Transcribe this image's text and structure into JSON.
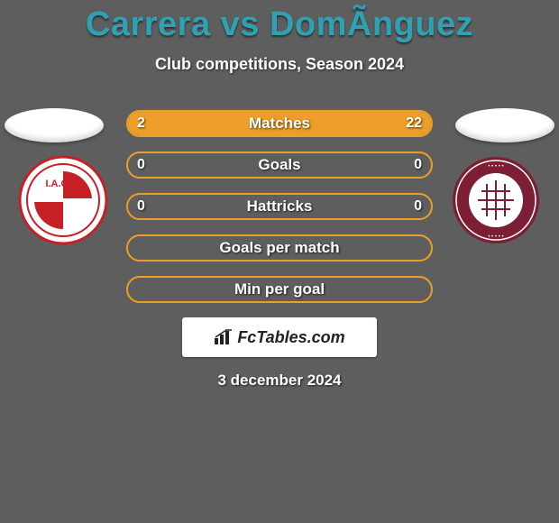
{
  "title": "Carrera vs DomÃnguez",
  "title_color": "#2ea1b3",
  "subtitle": "Club competitions, Season 2024",
  "background_color": "#5e5e5e",
  "accent_color": "#ec9e29",
  "bar_border_color": "#ec9e29",
  "empty_fill_color": "transparent",
  "rows": [
    {
      "label": "Matches",
      "left": "2",
      "right": "22",
      "left_pct": 8,
      "right_pct": 92
    },
    {
      "label": "Goals",
      "left": "0",
      "right": "0",
      "left_pct": 0,
      "right_pct": 0
    },
    {
      "label": "Hattricks",
      "left": "0",
      "right": "0",
      "left_pct": 0,
      "right_pct": 0
    },
    {
      "label": "Goals per match",
      "left": "",
      "right": "",
      "left_pct": 0,
      "right_pct": 0
    },
    {
      "label": "Min per goal",
      "left": "",
      "right": "",
      "left_pct": 0,
      "right_pct": 0
    }
  ],
  "branding": "FcTables.com",
  "date": "3 december 2024",
  "club_left": {
    "primary": "#c62027",
    "secondary": "#ffffff",
    "text": "I.A.C.C."
  },
  "club_right": {
    "primary": "#7d1f34",
    "secondary": "#ffffff"
  }
}
